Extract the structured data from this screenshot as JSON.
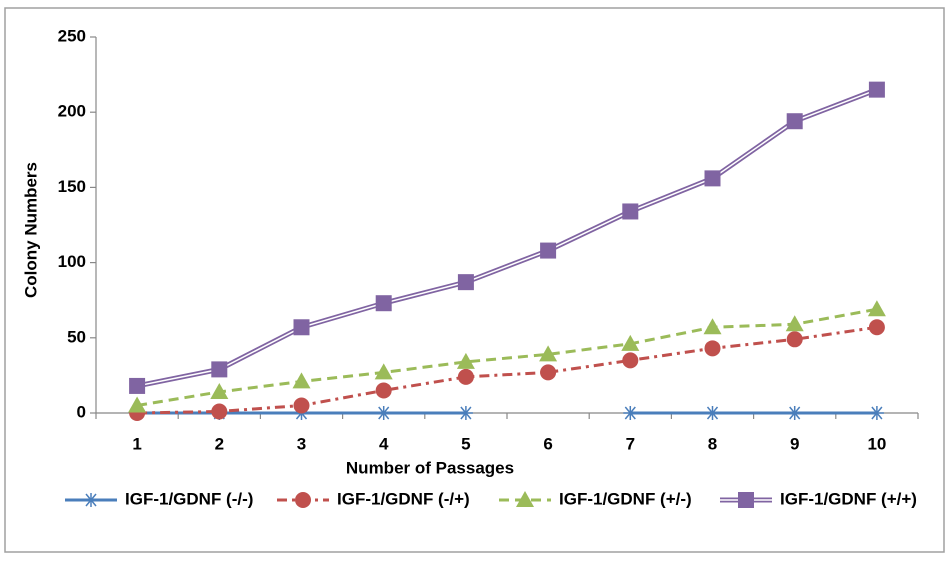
{
  "chart_data": {
    "type": "line",
    "xlabel": "Number of Passages",
    "ylabel": "Colony Numbers",
    "categories": [
      "1",
      "2",
      "3",
      "4",
      "5",
      "6",
      "7",
      "8",
      "9",
      "10"
    ],
    "ylim": [
      0,
      250
    ],
    "yticks": [
      0,
      50,
      100,
      150,
      200,
      250
    ],
    "series": [
      {
        "name": "IGF-1/GDNF (-/-)",
        "color": "#4a7ebb",
        "marker": "asterisk",
        "dash": "solid",
        "values": [
          0,
          0,
          0,
          0,
          0,
          null,
          0,
          0,
          0,
          0
        ]
      },
      {
        "name": "IGF-1/GDNF (-/+)",
        "color": "#c0504d",
        "marker": "circle",
        "dash": "dashdot",
        "values": [
          0,
          1,
          5,
          15,
          24,
          27,
          35,
          43,
          49,
          57
        ]
      },
      {
        "name": "IGF-1/GDNF (+/-)",
        "color": "#9bbb59",
        "marker": "triangle",
        "dash": "dashed",
        "values": [
          5,
          14,
          21,
          27,
          34,
          39,
          46,
          57,
          59,
          69
        ]
      },
      {
        "name": "IGF-1/GDNF (+/+)",
        "color": "#8064a2",
        "marker": "square",
        "dash": "double",
        "values": [
          18,
          29,
          57,
          73,
          87,
          108,
          134,
          156,
          194,
          215
        ]
      }
    ]
  }
}
